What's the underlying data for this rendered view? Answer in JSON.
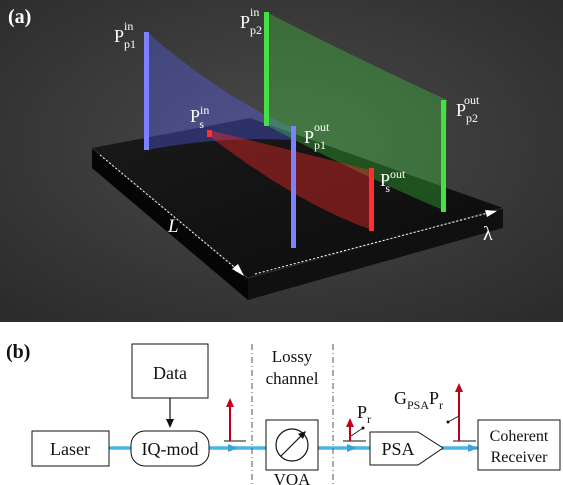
{
  "panel_a": {
    "label": "(a)",
    "length_label": "L",
    "wavelength_label": "λ",
    "pump1": {
      "in": {
        "base": "P",
        "sub": "p1",
        "sup": "in"
      },
      "out": {
        "base": "P",
        "sub": "p1",
        "sup": "out"
      }
    },
    "pump2": {
      "in": {
        "base": "P",
        "sub": "p2",
        "sup": "in"
      },
      "out": {
        "base": "P",
        "sub": "p2",
        "sup": "out"
      }
    },
    "signal": {
      "in": {
        "base": "P",
        "sub": "s",
        "sup": "in"
      },
      "out": {
        "base": "P",
        "sub": "s",
        "sup": "out"
      }
    },
    "colors": {
      "pump1": "#6f73ff",
      "pump2": "#3fd83f",
      "signal": "#ff3030",
      "background": "#3c3c3c"
    }
  },
  "panel_b": {
    "label": "(b)",
    "blocks": {
      "data": "Data",
      "laser": "Laser",
      "iq_mod": "IQ-mod",
      "lossy_channel_line1": "Lossy",
      "lossy_channel_line2": "channel",
      "voa": "VOA",
      "psa": "PSA",
      "receiver_line1": "Coherent",
      "receiver_line2": "Receiver"
    },
    "labels": {
      "pr": {
        "base": "P",
        "sub": "r"
      },
      "gain": {
        "base": "G",
        "sub": "PSA",
        "base2": "P",
        "sub2": "r"
      }
    },
    "colors": {
      "fiber": "#48b6e8",
      "arrow": "#c0001a"
    }
  }
}
